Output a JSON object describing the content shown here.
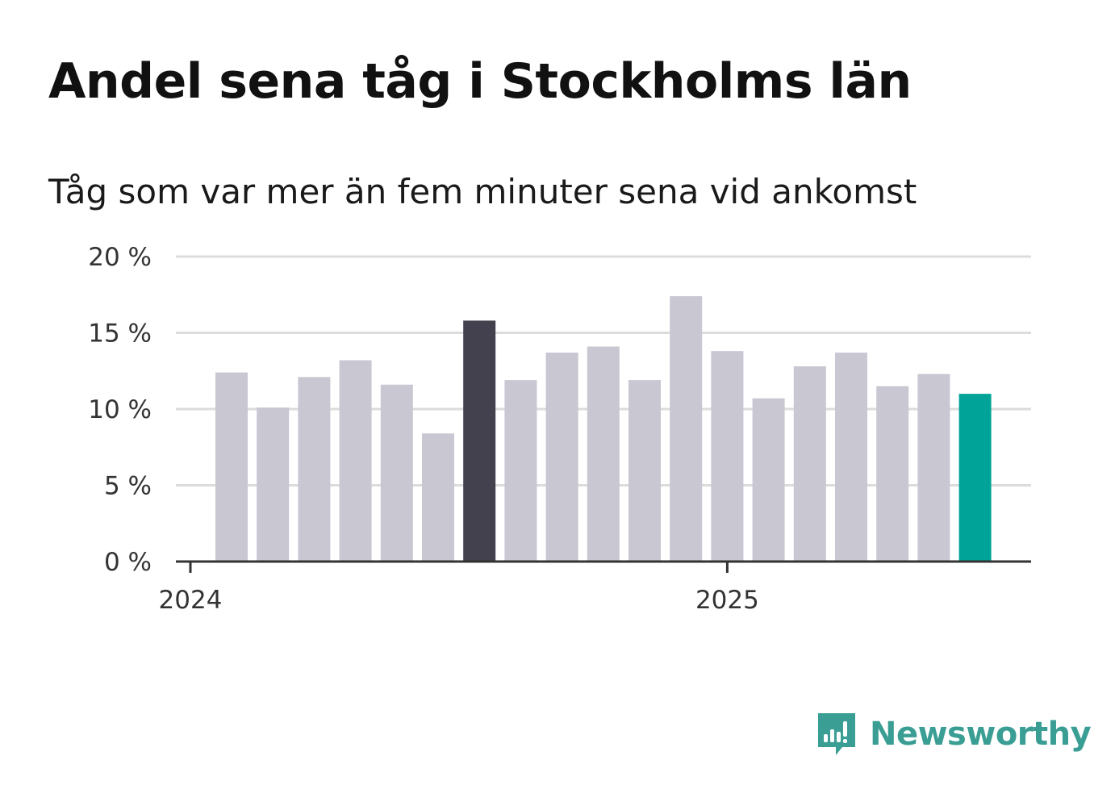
{
  "title": "Andel sena tåg i Stockholms län",
  "subtitle": "Tåg som var mer än fem minuter sena vid ankomst",
  "brand": {
    "name": "Newsworthy",
    "color": "#3a9e94"
  },
  "colors": {
    "default_bar": "#c8c7d2",
    "highlight_bar": "#43414d",
    "latest_bar": "#00a398",
    "grid": "#dcdcdc",
    "axis": "#333333"
  },
  "chart_data": {
    "type": "bar",
    "categories": [
      "2024-01",
      "2024-02",
      "2024-03",
      "2024-04",
      "2024-05",
      "2024-06",
      "2024-07",
      "2024-08",
      "2024-09",
      "2024-10",
      "2024-11",
      "2024-12",
      "2025-01",
      "2025-02",
      "2025-03",
      "2025-04",
      "2025-05",
      "2025-06",
      "2025-07"
    ],
    "values": [
      12.4,
      10.1,
      12.1,
      13.2,
      11.6,
      8.4,
      15.8,
      11.9,
      13.7,
      14.1,
      11.9,
      17.4,
      13.8,
      10.7,
      12.8,
      13.7,
      11.5,
      12.3,
      11.0
    ],
    "highlight_index": 6,
    "latest_index": 18,
    "ylim": [
      0,
      20
    ],
    "yticks": [
      0,
      5,
      10,
      15,
      20
    ],
    "ytick_labels": [
      "0 %",
      "5 %",
      "10 %",
      "15 %",
      "20 %"
    ],
    "xticks": [
      {
        "label": "2024",
        "at": "2024-01"
      },
      {
        "label": "2025",
        "at": "2025-01"
      }
    ],
    "grid": true
  }
}
